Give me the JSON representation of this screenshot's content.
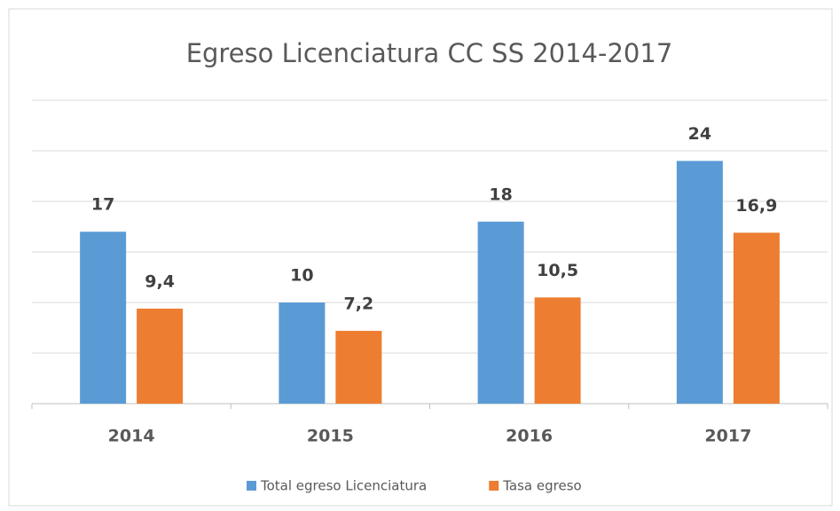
{
  "chart_data": {
    "type": "bar",
    "title": "Egreso Licenciatura CC SS 2014-2017",
    "categories": [
      "2014",
      "2015",
      "2016",
      "2017"
    ],
    "series": [
      {
        "name": "Total egreso Licenciatura",
        "color": "#5b9bd5",
        "values": [
          17,
          10,
          18,
          24
        ]
      },
      {
        "name": "Tasa egreso",
        "color": "#ed7d31",
        "values": [
          9.4,
          7.2,
          10.5,
          16.9
        ],
        "value_labels": [
          "9,4",
          "7,2",
          "10,5",
          "16,9"
        ]
      }
    ],
    "ylim": [
      0,
      30
    ],
    "yticks": [
      0,
      5,
      10,
      15,
      20,
      25,
      30
    ],
    "grid": true,
    "legend": "bottom"
  }
}
